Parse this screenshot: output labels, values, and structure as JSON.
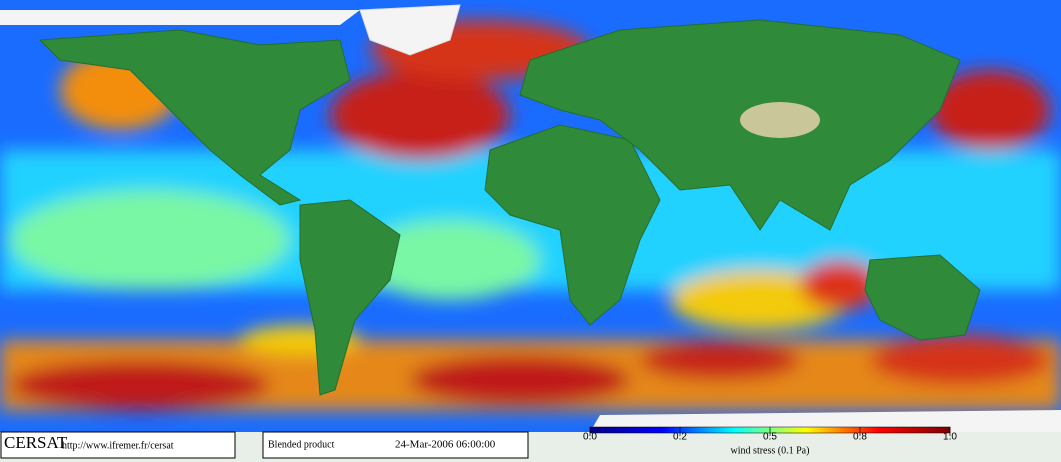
{
  "footer": {
    "logo": "CERSAT",
    "url": "http://www.ifremer.fr/cersat",
    "product": "Blended product",
    "timestamp": "24-Mar-2006 06:00:00"
  },
  "colorbar": {
    "label": "wind stress (0.1 Pa)",
    "ticks": [
      {
        "value": 0,
        "label": "0.0"
      },
      0.2,
      0.5,
      0.8,
      {
        "value": 1,
        "label": "1.0"
      }
    ],
    "colors": [
      "#00007f",
      "#0000ff",
      "#00ffff",
      "#ffff00",
      "#ff0000",
      "#7f0000"
    ]
  }
}
